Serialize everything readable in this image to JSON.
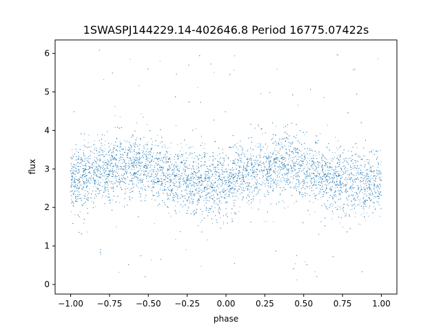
{
  "chart_data": {
    "type": "scatter",
    "title": "1SWASPJ144229.14-402646.8 Period 16775.07422s",
    "xlabel": "phase",
    "ylabel": "flux",
    "xlim": [
      -1.1,
      1.1
    ],
    "ylim": [
      -0.25,
      6.35
    ],
    "x_ticks": [
      -1.0,
      -0.75,
      -0.5,
      -0.25,
      0.0,
      0.25,
      0.5,
      0.75,
      1.0
    ],
    "x_tick_labels": [
      "−1.00",
      "−0.75",
      "−0.50",
      "−0.25",
      "0.00",
      "0.25",
      "0.50",
      "0.75",
      "1.00"
    ],
    "y_ticks": [
      0,
      1,
      2,
      3,
      4,
      5,
      6
    ],
    "y_tick_labels": [
      "0",
      "1",
      "2",
      "3",
      "4",
      "5",
      "6"
    ],
    "grid": false,
    "legend": "none",
    "marker_color": "#1f77b4",
    "series": [
      {
        "x": [
          -1.0,
          -0.95,
          -0.9,
          -0.85,
          -0.8,
          -0.75,
          -0.7,
          -0.65,
          -0.6,
          -0.55,
          -0.5,
          -0.45,
          -0.4,
          -0.35,
          -0.3,
          -0.25,
          -0.2,
          -0.15,
          -0.1,
          -0.05,
          0.0,
          0.05,
          0.1,
          0.15,
          0.2,
          0.25,
          0.3,
          0.35,
          0.4,
          0.45,
          0.5,
          0.55,
          0.6,
          0.65,
          0.7,
          0.75,
          0.8,
          0.85,
          0.9,
          0.95,
          1.0
        ],
        "y": [
          2.65,
          2.72,
          2.8,
          2.88,
          2.95,
          3.02,
          3.08,
          3.12,
          3.12,
          3.08,
          3.0,
          2.92,
          2.85,
          2.78,
          2.72,
          2.68,
          2.65,
          2.62,
          2.6,
          2.62,
          2.65,
          2.72,
          2.8,
          2.88,
          2.95,
          3.02,
          3.08,
          3.12,
          3.12,
          3.08,
          3.0,
          2.92,
          2.85,
          2.78,
          2.72,
          2.68,
          2.65,
          2.62,
          2.6,
          2.62,
          2.65
        ]
      }
    ]
  }
}
